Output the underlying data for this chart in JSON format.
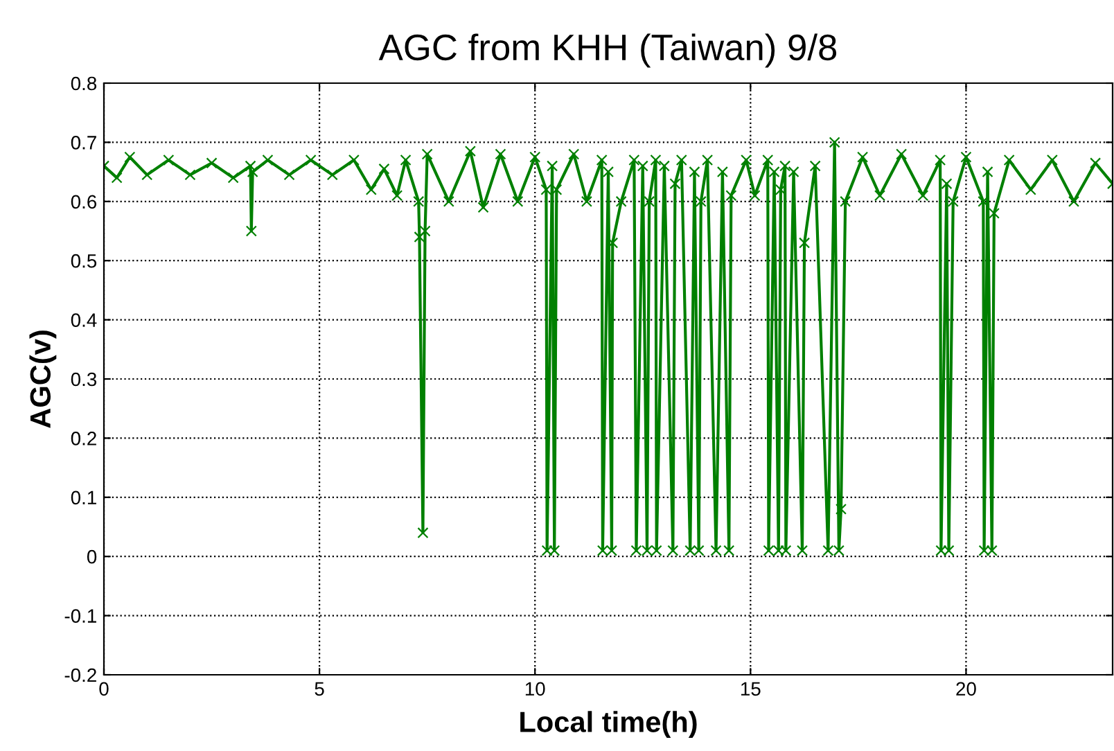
{
  "chart_data": {
    "type": "line",
    "title": "AGC from KHH (Taiwan) 9/8",
    "xlabel": "Local time(h)",
    "ylabel": "AGC(v)",
    "xlim": [
      0,
      23.4
    ],
    "xticks": [
      0,
      5,
      10,
      15,
      20
    ],
    "ylim": [
      -0.2,
      0.8
    ],
    "yticks": [
      -0.2,
      -0.1,
      0,
      0.1,
      0.2,
      0.3,
      0.4,
      0.5,
      0.6,
      0.7,
      0.8
    ],
    "grid": true,
    "marker": "cross",
    "line_style": "solid",
    "series": [
      {
        "color": "#008000",
        "x": [
          0,
          0.3,
          0.6,
          1,
          1.5,
          2,
          2.5,
          3,
          3.4,
          3.42,
          3.45,
          3.8,
          4.3,
          4.8,
          5.3,
          5.8,
          6.2,
          6.5,
          6.8,
          7.0,
          7.3,
          7.32,
          7.4,
          7.45,
          7.5,
          8,
          8.5,
          8.8,
          9.2,
          9.6,
          10,
          10.26,
          10.28,
          10.4,
          10.45,
          10.5,
          10.9,
          11.2,
          11.55,
          11.57,
          11.7,
          11.78,
          11.8,
          12.0,
          12.3,
          12.35,
          12.5,
          12.6,
          12.65,
          12.8,
          12.82,
          13.0,
          13.2,
          13.25,
          13.4,
          13.6,
          13.7,
          13.8,
          13.85,
          14.0,
          14.2,
          14.35,
          14.5,
          14.55,
          14.9,
          15.1,
          15.4,
          15.42,
          15.55,
          15.65,
          15.7,
          15.8,
          15.82,
          16.0,
          16.2,
          16.25,
          16.5,
          16.8,
          16.95,
          17.05,
          17.1,
          17.2,
          17.6,
          18.0,
          18.5,
          19.0,
          19.4,
          19.42,
          19.55,
          19.6,
          19.7,
          20.0,
          20.4,
          20.42,
          20.5,
          20.6,
          20.65,
          21.0,
          21.5,
          22.0,
          22.5,
          23.0,
          23.4
        ],
        "values": [
          0.66,
          0.64,
          0.675,
          0.645,
          0.67,
          0.645,
          0.665,
          0.64,
          0.66,
          0.55,
          0.65,
          0.67,
          0.645,
          0.67,
          0.645,
          0.67,
          0.62,
          0.655,
          0.61,
          0.67,
          0.6,
          0.54,
          0.04,
          0.55,
          0.68,
          0.6,
          0.685,
          0.59,
          0.68,
          0.6,
          0.675,
          0.62,
          0.01,
          0.66,
          0.01,
          0.62,
          0.68,
          0.6,
          0.67,
          0.01,
          0.65,
          0.01,
          0.53,
          0.6,
          0.67,
          0.01,
          0.66,
          0.01,
          0.6,
          0.67,
          0.01,
          0.66,
          0.01,
          0.63,
          0.67,
          0.01,
          0.65,
          0.01,
          0.6,
          0.67,
          0.01,
          0.65,
          0.01,
          0.61,
          0.67,
          0.61,
          0.67,
          0.01,
          0.65,
          0.01,
          0.62,
          0.66,
          0.01,
          0.65,
          0.01,
          0.53,
          0.66,
          0.01,
          0.7,
          0.01,
          0.08,
          0.6,
          0.675,
          0.61,
          0.68,
          0.61,
          0.67,
          0.01,
          0.63,
          0.01,
          0.6,
          0.675,
          0.6,
          0.01,
          0.65,
          0.01,
          0.58,
          0.67,
          0.62,
          0.67,
          0.6,
          0.665,
          0.63
        ]
      }
    ]
  }
}
